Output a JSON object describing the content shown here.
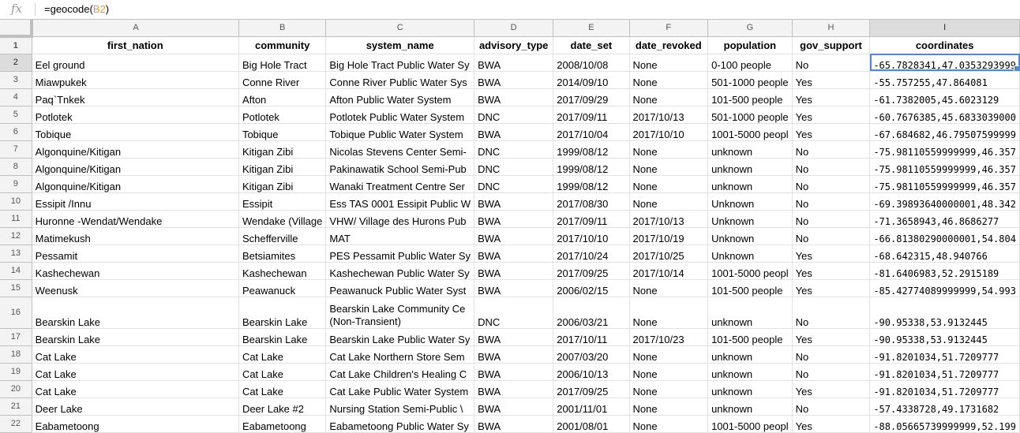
{
  "formula_bar": {
    "fx_label": "fx",
    "prefix": "=geocode(",
    "ref": "B2",
    "suffix": ")"
  },
  "columns": [
    "A",
    "B",
    "C",
    "D",
    "E",
    "F",
    "G",
    "H",
    "I"
  ],
  "headers": [
    "first_nation",
    "community",
    "system_name",
    "advisory_type",
    "date_set",
    "date_revoked",
    "population",
    "gov_support",
    "coordinates"
  ],
  "rows": [
    {
      "n": "2",
      "cells": [
        "Eel ground",
        "Big Hole Tract",
        "Big Hole Tract Public Water Sy",
        "BWA",
        "2008/10/08",
        "None",
        "0-100 people",
        "No",
        "-65.7828341,47.0353293999"
      ]
    },
    {
      "n": "3",
      "cells": [
        "Miawpukek",
        "Conne River",
        "Conne River Public Water Sys",
        "BWA",
        "2014/09/10",
        "None",
        "501-1000 people",
        "Yes",
        "-55.757255,47.864081"
      ]
    },
    {
      "n": "4",
      "cells": [
        "Paq`Tnkek",
        "Afton",
        "Afton Public Water System",
        "BWA",
        "2017/09/29",
        "None",
        "101-500 people",
        "Yes",
        "-61.7382005,45.6023129"
      ]
    },
    {
      "n": "5",
      "cells": [
        "Potlotek",
        "Potlotek",
        "Potlotek Public Water System",
        "DNC",
        "2017/09/11",
        "2017/10/13",
        "501-1000 people",
        "Yes",
        "-60.7676385,45.6833039000"
      ]
    },
    {
      "n": "6",
      "cells": [
        "Tobique",
        "Tobique",
        "Tobique Public Water System",
        "BWA",
        "2017/10/04",
        "2017/10/10",
        "1001-5000 peopl",
        "Yes",
        "-67.684682,46.79507599999"
      ]
    },
    {
      "n": "7",
      "cells": [
        "Algonquine/Kitigan",
        "Kitigan Zibi",
        "Nicolas Stevens Center Semi-",
        "DNC",
        "1999/08/12",
        "None",
        "unknown",
        "No",
        "-75.98110559999999,46.357"
      ]
    },
    {
      "n": "8",
      "cells": [
        "Algonquine/Kitigan",
        "Kitigan Zibi",
        "Pakinawatik School Semi-Pub",
        "DNC",
        "1999/08/12",
        "None",
        "unknown",
        "No",
        "-75.98110559999999,46.357"
      ]
    },
    {
      "n": "9",
      "cells": [
        "Algonquine/Kitigan",
        "Kitigan Zibi",
        "Wanaki Treatment Centre Ser",
        "DNC",
        "1999/08/12",
        "None",
        "unknown",
        "No",
        "-75.98110559999999,46.357"
      ]
    },
    {
      "n": "10",
      "cells": [
        "Essipit /Innu",
        "Essipit",
        "Ess TAS 0001 Essipit Public W",
        "BWA",
        "2017/08/30",
        "None",
        "Unknown",
        "No",
        "-69.39893640000001,48.342"
      ]
    },
    {
      "n": "11",
      "cells": [
        "Huronne -Wendat/Wendake",
        "Wendake (Village",
        "VHW/ Village des Hurons Pub",
        "BWA",
        "2017/09/11",
        "2017/10/13",
        "Unknown",
        "No",
        "-71.3658943,46.8686277"
      ]
    },
    {
      "n": "12",
      "cells": [
        "Matimekush",
        "Schefferville",
        "MAT",
        "BWA",
        "2017/10/10",
        "2017/10/19",
        "Unknown",
        "No",
        "-66.81380290000001,54.804"
      ]
    },
    {
      "n": "13",
      "cells": [
        "Pessamit",
        "Betsiamites",
        "PES Pessamit Public Water Sy",
        "BWA",
        "2017/10/24",
        "2017/10/25",
        "Unknown",
        "Yes",
        "-68.642315,48.940766"
      ]
    },
    {
      "n": "14",
      "cells": [
        "Kashechewan",
        "Kashechewan",
        "Kashechewan Public Water Sy",
        "BWA",
        "2017/09/25",
        "2017/10/14",
        "1001-5000 peopl",
        "Yes",
        "-81.6406983,52.2915189"
      ]
    },
    {
      "n": "15",
      "cells": [
        "Weenusk",
        "Peawanuck",
        "Peawanuck Public Water Syst",
        "BWA",
        "2006/02/15",
        "None",
        "101-500 people",
        "Yes",
        "-85.42774089999999,54.993"
      ]
    },
    {
      "n": "16",
      "tall": true,
      "cells": [
        "Bearskin Lake",
        "Bearskin Lake",
        "Bearskin Lake Community Ce (Non-Transient)",
        "DNC",
        "2006/03/21",
        "None",
        "unknown",
        "No",
        "-90.95338,53.9132445"
      ]
    },
    {
      "n": "17",
      "cells": [
        "Bearskin Lake",
        "Bearskin Lake",
        "Bearskin Lake Public Water Sy",
        "BWA",
        "2017/10/11",
        "2017/10/23",
        "101-500 people",
        "Yes",
        "-90.95338,53.9132445"
      ]
    },
    {
      "n": "18",
      "cells": [
        "Cat Lake",
        "Cat Lake",
        "Cat Lake Northern Store Sem",
        "BWA",
        "2007/03/20",
        "None",
        "unknown",
        "No",
        "-91.8201034,51.7209777"
      ]
    },
    {
      "n": "19",
      "cells": [
        "Cat Lake",
        "Cat Lake",
        "Cat Lake Children's Healing C",
        "BWA",
        "2006/10/13",
        "None",
        "unknown",
        "No",
        "-91.8201034,51.7209777"
      ]
    },
    {
      "n": "20",
      "cells": [
        "Cat Lake",
        "Cat Lake",
        "Cat Lake Public Water System",
        "BWA",
        "2017/09/25",
        "None",
        "unknown",
        "Yes",
        "-91.8201034,51.7209777"
      ]
    },
    {
      "n": "21",
      "cells": [
        "Deer Lake",
        "Deer Lake #2",
        "Nursing Station Semi-Public \\",
        "BWA",
        "2001/11/01",
        "None",
        "unknown",
        "No",
        "-57.4338728,49.1731682"
      ]
    },
    {
      "n": "22",
      "cells": [
        "Eabametoong",
        "Eabametoong",
        "Eabametoong Public Water Sy",
        "BWA",
        "2001/08/01",
        "None",
        "1001-5000 peopl",
        "Yes",
        "-88.05665739999999,52.199"
      ]
    }
  ]
}
